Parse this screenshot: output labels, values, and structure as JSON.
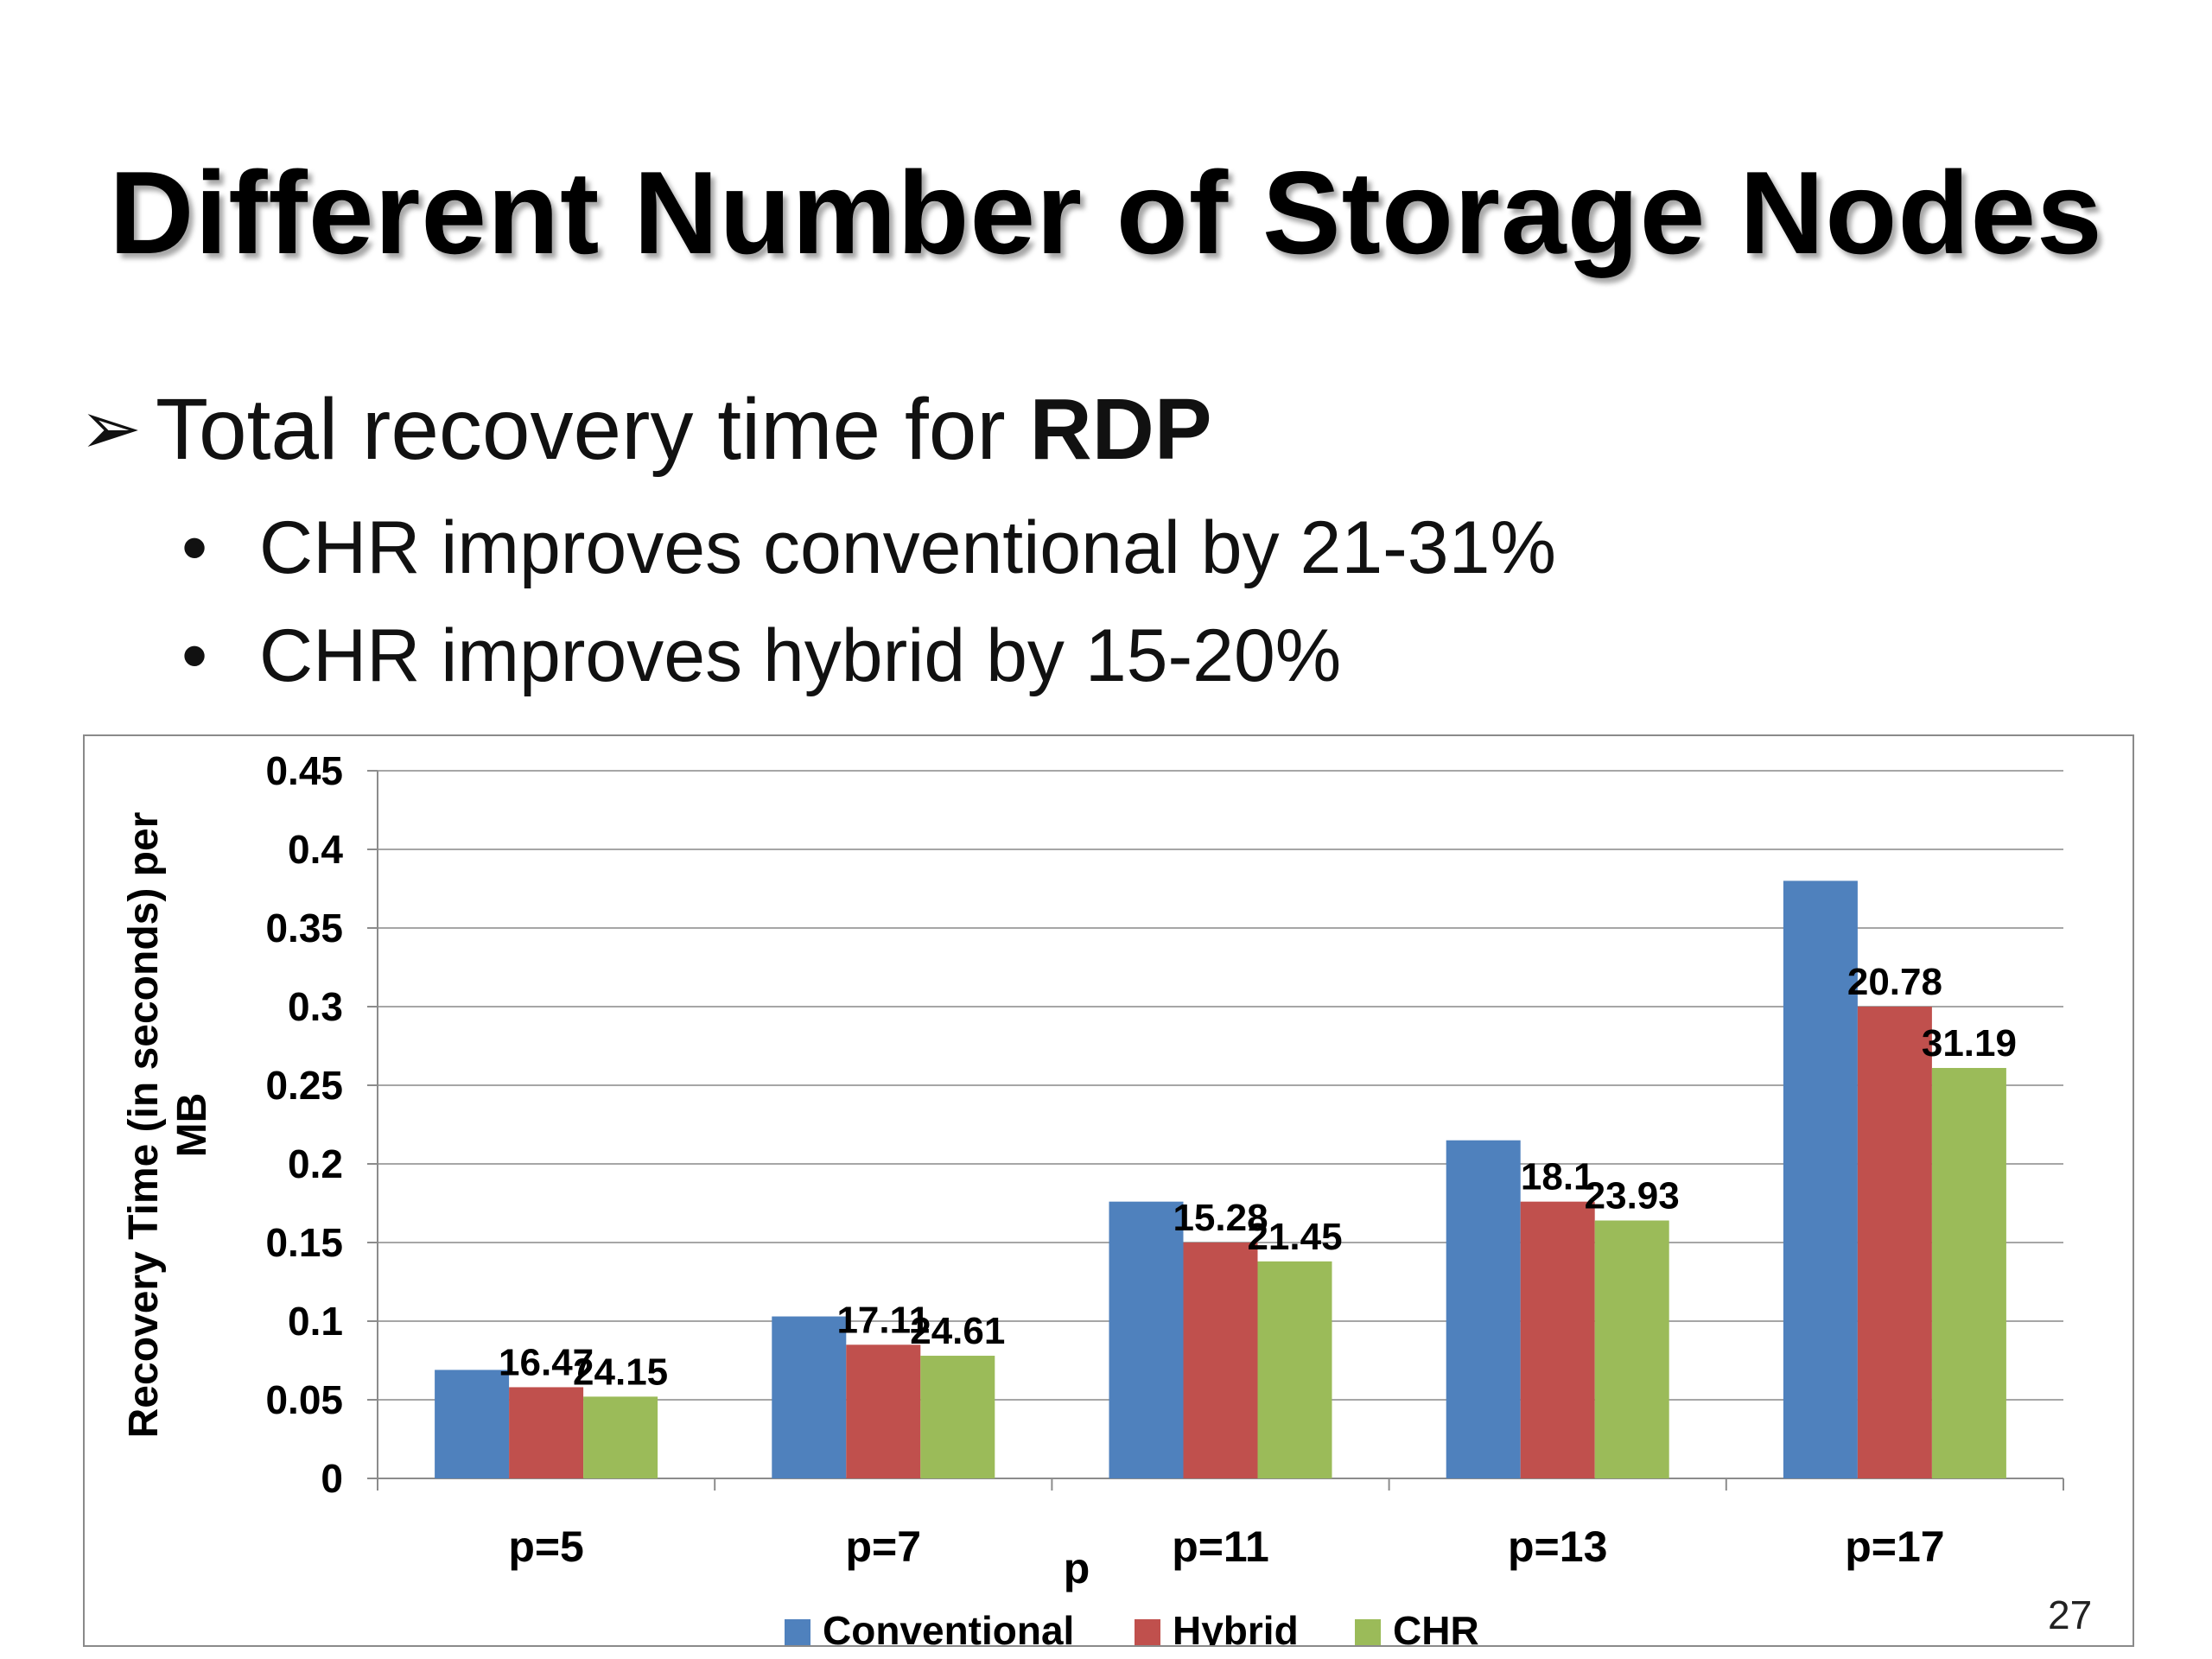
{
  "slide": {
    "title": "Different Number of Storage Nodes",
    "bullet_arrow": "➢",
    "bullet_text": "Total recovery time for ",
    "bullet_bold": "RDP",
    "sub_dot": "•",
    "sub_bullets": [
      "CHR improves conventional by 21-31%",
      "CHR improves hybrid by 15-20%"
    ],
    "page_number": "27"
  },
  "chart_data": {
    "type": "bar",
    "title": "",
    "xlabel": "p",
    "ylabel": "Recovery  Time (in seconds) per MB",
    "ylim": [
      0,
      0.45
    ],
    "yticks": [
      "0",
      "0.05",
      "0.1",
      "0.15",
      "0.2",
      "0.25",
      "0.3",
      "0.35",
      "0.4",
      "0.45"
    ],
    "grid": true,
    "legend_position": "bottom",
    "categories": [
      "p=5",
      "p=7",
      "p=11",
      "p=13",
      "p=17"
    ],
    "series": [
      {
        "name": "Conventional",
        "color": "#4F81BD",
        "values": [
          0.069,
          0.103,
          0.176,
          0.215,
          0.38
        ],
        "labels": [
          "",
          "",
          "",
          "",
          ""
        ]
      },
      {
        "name": "Hybrid",
        "color": "#C0504D",
        "values": [
          0.058,
          0.085,
          0.15,
          0.176,
          0.3
        ],
        "labels": [
          "16.47",
          "17.11",
          "15.28",
          "18.1",
          "20.78"
        ]
      },
      {
        "name": "CHR",
        "color": "#9BBB59",
        "values": [
          0.052,
          0.078,
          0.138,
          0.164,
          0.261
        ],
        "labels": [
          "24.15",
          "24.61",
          "21.45",
          "23.93",
          "31.19"
        ]
      }
    ]
  }
}
